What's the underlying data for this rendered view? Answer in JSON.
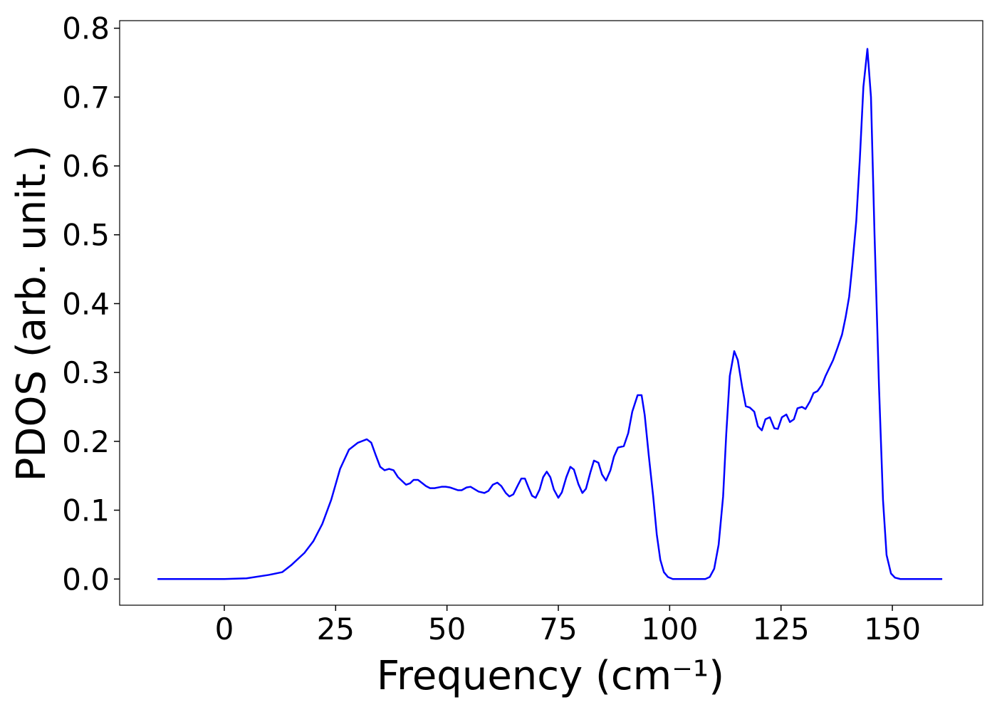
{
  "chart_data": {
    "type": "line",
    "xlabel": "Frequency (cm⁻¹)",
    "ylabel": "PDOS (arb. unit.)",
    "x": [
      -15,
      0,
      5,
      10,
      13,
      15,
      18,
      20,
      22,
      24,
      26,
      28,
      30,
      32,
      33,
      34,
      35,
      36,
      37,
      38,
      39,
      40.8,
      41.7,
      42.5,
      43.5,
      44.3,
      45.3,
      46.2,
      47.2,
      48.8,
      49.7,
      50.7,
      52.5,
      53.3,
      54.4,
      55.3,
      57.1,
      58.4,
      59.3,
      60.3,
      61.3,
      62.2,
      63.2,
      64,
      64.9,
      65.9,
      66.7,
      67.5,
      68.3,
      69.1,
      69.9,
      70.8,
      71.6,
      72.4,
      73.2,
      74,
      75,
      75.8,
      76.8,
      77.7,
      78.5,
      79.5,
      80.4,
      81.2,
      82.2,
      83,
      84,
      84.8,
      85.7,
      86.7,
      87.5,
      88.4,
      89.7,
      90.7,
      91.6,
      92.8,
      93.7,
      94.4,
      95.3,
      96.3,
      97.1,
      97.9,
      98.7,
      99.6,
      100.7,
      108,
      109,
      110,
      111,
      112,
      112.7,
      113.5,
      114.5,
      115.3,
      116.3,
      117.1,
      118,
      119,
      119.8,
      120.7,
      121.5,
      122.5,
      123.5,
      124.3,
      125.2,
      126.2,
      127,
      127.9,
      128.7,
      129.7,
      130.5,
      131.5,
      132.3,
      133.2,
      134.2,
      135,
      136.7,
      137.7,
      138.7,
      139.5,
      140.3,
      141,
      141.9,
      142.7,
      143.5,
      144.4,
      145.2,
      146,
      147,
      147.9,
      148.7,
      149.7,
      150.6,
      151.8,
      161.2
    ],
    "series": [
      {
        "color": "#0000ff",
        "values": [
          0,
          0,
          0.001,
          0.006,
          0.01,
          0.02,
          0.038,
          0.055,
          0.08,
          0.115,
          0.16,
          0.188,
          0.198,
          0.203,
          0.198,
          0.18,
          0.163,
          0.158,
          0.16,
          0.158,
          0.148,
          0.137,
          0.139,
          0.144,
          0.144,
          0.14,
          0.135,
          0.132,
          0.132,
          0.134,
          0.134,
          0.133,
          0.129,
          0.129,
          0.133,
          0.134,
          0.127,
          0.125,
          0.128,
          0.137,
          0.14,
          0.135,
          0.125,
          0.12,
          0.123,
          0.136,
          0.146,
          0.146,
          0.133,
          0.121,
          0.118,
          0.13,
          0.148,
          0.156,
          0.148,
          0.13,
          0.118,
          0.126,
          0.148,
          0.163,
          0.159,
          0.138,
          0.125,
          0.131,
          0.155,
          0.172,
          0.169,
          0.152,
          0.143,
          0.158,
          0.178,
          0.191,
          0.193,
          0.212,
          0.243,
          0.267,
          0.267,
          0.238,
          0.18,
          0.12,
          0.065,
          0.028,
          0.01,
          0.003,
          0,
          0,
          0.003,
          0.015,
          0.05,
          0.12,
          0.21,
          0.295,
          0.331,
          0.318,
          0.278,
          0.251,
          0.249,
          0.243,
          0.222,
          0.216,
          0.232,
          0.235,
          0.219,
          0.218,
          0.235,
          0.239,
          0.228,
          0.232,
          0.248,
          0.25,
          0.247,
          0.258,
          0.27,
          0.273,
          0.282,
          0.295,
          0.318,
          0.336,
          0.355,
          0.38,
          0.41,
          0.455,
          0.52,
          0.61,
          0.715,
          0.77,
          0.7,
          0.5,
          0.28,
          0.115,
          0.035,
          0.008,
          0.002,
          0,
          0
        ]
      }
    ],
    "xlim": [
      -23.5,
      170.3
    ],
    "ylim": [
      -0.038,
      0.811
    ],
    "xticks": [
      0,
      25,
      50,
      75,
      100,
      125,
      150
    ],
    "yticks": [
      {
        "value": 0,
        "label": "0.0"
      },
      0.1,
      0.2,
      0.3,
      0.4,
      0.5,
      0.6,
      0.7,
      0.8
    ]
  }
}
